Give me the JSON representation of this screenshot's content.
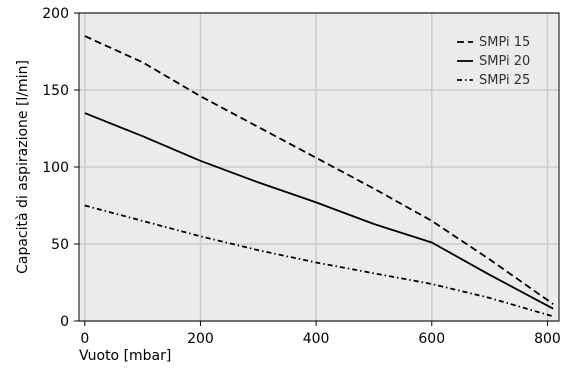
{
  "chart_data": {
    "type": "line",
    "title": "",
    "xlabel": "Vuoto [mbar]",
    "ylabel": "Capacità di aspirazione [l/min]",
    "xlim": [
      -10,
      820
    ],
    "ylim": [
      0,
      200
    ],
    "xticks": [
      0,
      200,
      400,
      600,
      800
    ],
    "yticks": [
      0,
      50,
      100,
      150,
      200
    ],
    "grid": true,
    "legend_position": "top-right",
    "colors": {
      "plot_background": "#ebebeb",
      "grid": "#cccccc",
      "line": "#000000"
    },
    "series": [
      {
        "name": "SMPi 15",
        "style": "dashed",
        "x": [
          0,
          100,
          200,
          300,
          400,
          500,
          600,
          700,
          810
        ],
        "y": [
          185,
          168,
          146,
          126,
          106,
          86,
          65,
          40,
          11
        ]
      },
      {
        "name": "SMPi 20",
        "style": "solid",
        "x": [
          0,
          100,
          200,
          300,
          400,
          500,
          600,
          700,
          810
        ],
        "y": [
          135,
          120,
          104,
          90,
          77,
          63,
          51,
          30,
          8
        ]
      },
      {
        "name": "SMPi 25",
        "style": "dash-dot",
        "x": [
          0,
          100,
          200,
          300,
          400,
          500,
          600,
          700,
          810
        ],
        "y": [
          75,
          65,
          55,
          46,
          38,
          31,
          24,
          15,
          3
        ]
      }
    ]
  }
}
